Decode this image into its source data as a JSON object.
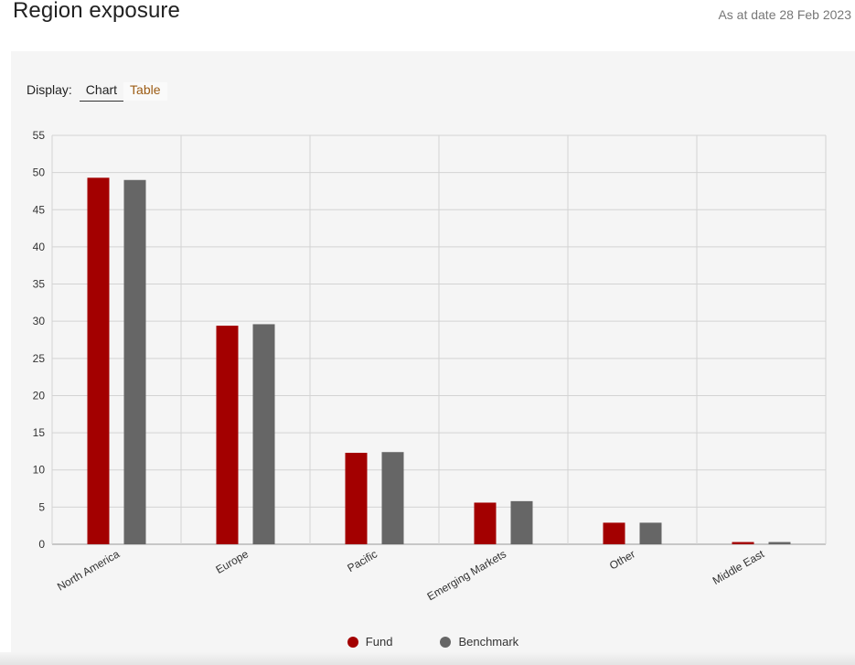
{
  "header": {
    "title": "Region exposure",
    "as_at": "As at date 28 Feb 2023"
  },
  "display": {
    "label": "Display:",
    "tabs": [
      {
        "label": "Chart",
        "active": true
      },
      {
        "label": "Table",
        "active": false
      }
    ]
  },
  "colors": {
    "fund": "#a30000",
    "benchmark": "#666666",
    "grid": "#d3d3d3",
    "tab_link": "#9c5c14"
  },
  "legend": [
    {
      "label": "Fund",
      "color": "#a30000"
    },
    {
      "label": "Benchmark",
      "color": "#666666"
    }
  ],
  "chart_data": {
    "type": "bar",
    "categories": [
      "North America",
      "Europe",
      "Pacific",
      "Emerging Markets",
      "Other",
      "Middle East"
    ],
    "series": [
      {
        "name": "Fund",
        "values": [
          49.3,
          29.4,
          12.3,
          5.6,
          2.9,
          0.3
        ]
      },
      {
        "name": "Benchmark",
        "values": [
          49.0,
          29.6,
          12.4,
          5.8,
          2.9,
          0.3
        ]
      }
    ],
    "yticks": [
      0,
      5,
      10,
      15,
      20,
      25,
      30,
      35,
      40,
      45,
      50,
      55
    ],
    "ylim": [
      0,
      55
    ],
    "grid": true,
    "legend_position": "bottom"
  }
}
